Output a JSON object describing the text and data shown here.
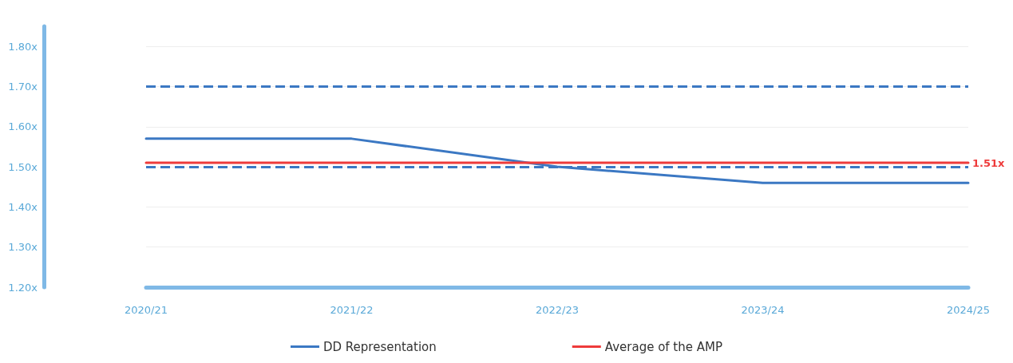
{
  "chart_data": {
    "type": "line",
    "categories": [
      "2020/21",
      "2021/22",
      "2022/23",
      "2023/24",
      "2024/25"
    ],
    "series": [
      {
        "name": "DD Representation",
        "color": "#3b78c3",
        "values": [
          1.57,
          1.57,
          1.5,
          1.46,
          1.46
        ]
      },
      {
        "name": "Average of the AMP",
        "color": "#ee3b3b",
        "values": [
          1.51,
          1.51,
          1.51,
          1.51,
          1.51
        ],
        "value_labels": [
          null,
          null,
          null,
          null,
          "1.51x"
        ]
      }
    ],
    "ylim": [
      1.2,
      1.85
    ],
    "yticks": [
      {
        "value": 1.2,
        "label": "1.20x"
      },
      {
        "value": 1.3,
        "label": "1.30x"
      },
      {
        "value": 1.4,
        "label": "1.40x"
      },
      {
        "value": 1.5,
        "label": "1.50x"
      },
      {
        "value": 1.6,
        "label": "1.60x"
      },
      {
        "value": 1.7,
        "label": "1.70x"
      },
      {
        "value": 1.8,
        "label": "1.80x"
      }
    ],
    "ref_lines": [
      {
        "axis": "y",
        "value": 1.7,
        "color": "#3b78c3",
        "line_style": "dashed"
      },
      {
        "axis": "y",
        "value": 1.5,
        "color": "#3b78c3",
        "line_style": "dashed"
      }
    ],
    "grid": "y",
    "legend": "bottom",
    "marker": "none",
    "line_style": "solid"
  }
}
